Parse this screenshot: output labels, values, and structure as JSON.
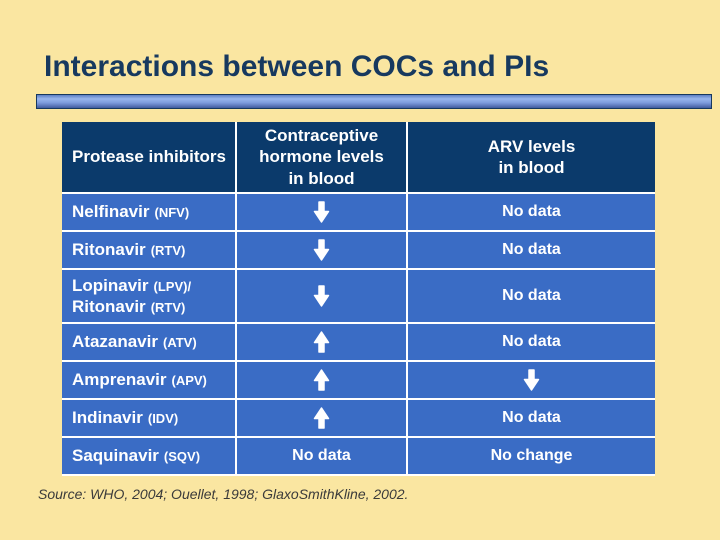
{
  "title": "Interactions between COCs and PIs",
  "source_note": "Source: WHO, 2004; Ouellet, 1998; GlaxoSmithKline, 2002.",
  "colors": {
    "background": "#FAE6A1",
    "title": "#17395F",
    "header_bg": "#0B3A6B",
    "row_bg": "#3A6CC5",
    "cell_text": "#FFFFFF",
    "divider": "#FFFFFF",
    "source_text": "#3A3A3A"
  },
  "icons": {
    "down": "down-arrow-icon",
    "up": "up-arrow-icon"
  },
  "table": {
    "columns": [
      {
        "label": "Protease inhibitors"
      },
      {
        "label": "Contraceptive\nhormone levels\nin blood"
      },
      {
        "label": "ARV levels\nin blood"
      }
    ],
    "rows": [
      {
        "drug": [
          {
            "name": "Nelfinavir",
            "abbr": "(NFV)"
          }
        ],
        "hormone": {
          "kind": "arrow",
          "dir": "down"
        },
        "arv": {
          "kind": "text",
          "value": "No data"
        }
      },
      {
        "drug": [
          {
            "name": "Ritonavir",
            "abbr": "(RTV)"
          }
        ],
        "hormone": {
          "kind": "arrow",
          "dir": "down"
        },
        "arv": {
          "kind": "text",
          "value": "No data"
        }
      },
      {
        "drug": [
          {
            "name": "Lopinavir",
            "abbr": "(LPV)/"
          },
          {
            "name": "Ritonavir",
            "abbr": "(RTV)"
          }
        ],
        "tall": true,
        "hormone": {
          "kind": "arrow",
          "dir": "down"
        },
        "arv": {
          "kind": "text",
          "value": "No data"
        }
      },
      {
        "drug": [
          {
            "name": "Atazanavir",
            "abbr": "(ATV)"
          }
        ],
        "hormone": {
          "kind": "arrow",
          "dir": "up"
        },
        "arv": {
          "kind": "text",
          "value": "No data"
        }
      },
      {
        "drug": [
          {
            "name": "Amprenavir",
            "abbr": "(APV)"
          }
        ],
        "hormone": {
          "kind": "arrow",
          "dir": "up"
        },
        "arv": {
          "kind": "arrow",
          "dir": "down"
        }
      },
      {
        "drug": [
          {
            "name": "Indinavir",
            "abbr": "(IDV)"
          }
        ],
        "hormone": {
          "kind": "arrow",
          "dir": "up"
        },
        "arv": {
          "kind": "text",
          "value": "No data"
        }
      },
      {
        "drug": [
          {
            "name": "Saquinavir",
            "abbr": "(SQV)"
          }
        ],
        "hormone": {
          "kind": "text",
          "value": "No data"
        },
        "arv": {
          "kind": "text",
          "value": "No change"
        }
      }
    ]
  }
}
